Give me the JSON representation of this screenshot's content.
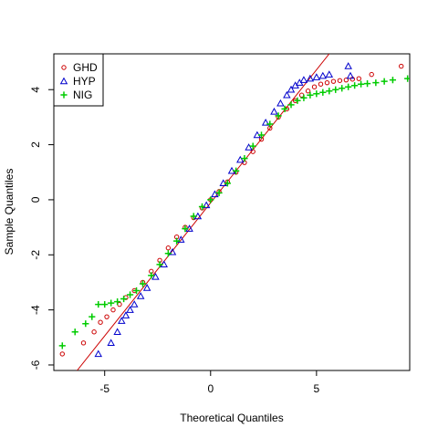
{
  "chart_data": {
    "type": "scatter",
    "title": "",
    "xlabel": "Theoretical Quantiles",
    "ylabel": "Sample Quantiles",
    "xlim": [
      -7.4,
      9.4
    ],
    "ylim": [
      -6.2,
      5.3
    ],
    "xticks": [
      -5,
      0,
      5
    ],
    "yticks": [
      -6,
      -4,
      -2,
      0,
      2,
      4
    ],
    "grid": false,
    "legend": {
      "position": "top-left",
      "entries": [
        "GHD",
        "HYP",
        "NIG"
      ]
    },
    "reference_line": {
      "color": "#cc0000",
      "from": [
        -6.3,
        -6.2
      ],
      "to": [
        5.6,
        5.3
      ]
    },
    "series": [
      {
        "name": "GHD",
        "marker": "circle",
        "color": "#cc0000",
        "points": [
          [
            -7.0,
            -5.6
          ],
          [
            -6.0,
            -5.2
          ],
          [
            -5.5,
            -4.8
          ],
          [
            -5.2,
            -4.45
          ],
          [
            -4.9,
            -4.25
          ],
          [
            -4.6,
            -4.0
          ],
          [
            -4.3,
            -3.8
          ],
          [
            -4.0,
            -3.55
          ],
          [
            -3.6,
            -3.3
          ],
          [
            -3.2,
            -3.0
          ],
          [
            -2.8,
            -2.6
          ],
          [
            -2.4,
            -2.2
          ],
          [
            -2.0,
            -1.75
          ],
          [
            -1.6,
            -1.35
          ],
          [
            -1.2,
            -1.0
          ],
          [
            -0.8,
            -0.65
          ],
          [
            -0.4,
            -0.3
          ],
          [
            0.0,
            0.0
          ],
          [
            0.4,
            0.3
          ],
          [
            0.8,
            0.65
          ],
          [
            1.2,
            1.0
          ],
          [
            1.6,
            1.35
          ],
          [
            2.0,
            1.75
          ],
          [
            2.4,
            2.2
          ],
          [
            2.8,
            2.6
          ],
          [
            3.2,
            3.0
          ],
          [
            3.6,
            3.3
          ],
          [
            4.0,
            3.6
          ],
          [
            4.3,
            3.8
          ],
          [
            4.6,
            3.95
          ],
          [
            4.9,
            4.1
          ],
          [
            5.2,
            4.2
          ],
          [
            5.5,
            4.25
          ],
          [
            5.8,
            4.3
          ],
          [
            6.1,
            4.33
          ],
          [
            6.4,
            4.35
          ],
          [
            6.7,
            4.38
          ],
          [
            7.0,
            4.4
          ],
          [
            7.6,
            4.55
          ],
          [
            9.0,
            4.85
          ]
        ]
      },
      {
        "name": "HYP",
        "marker": "triangle",
        "color": "#0000cc",
        "points": [
          [
            -5.3,
            -5.6
          ],
          [
            -4.7,
            -5.2
          ],
          [
            -4.4,
            -4.8
          ],
          [
            -4.2,
            -4.4
          ],
          [
            -4.0,
            -4.2
          ],
          [
            -3.8,
            -4.0
          ],
          [
            -3.6,
            -3.8
          ],
          [
            -3.3,
            -3.5
          ],
          [
            -3.0,
            -3.2
          ],
          [
            -2.6,
            -2.8
          ],
          [
            -2.2,
            -2.35
          ],
          [
            -1.8,
            -1.9
          ],
          [
            -1.4,
            -1.45
          ],
          [
            -1.0,
            -1.05
          ],
          [
            -0.6,
            -0.6
          ],
          [
            -0.2,
            -0.2
          ],
          [
            0.2,
            0.2
          ],
          [
            0.6,
            0.6
          ],
          [
            1.0,
            1.05
          ],
          [
            1.4,
            1.45
          ],
          [
            1.8,
            1.9
          ],
          [
            2.2,
            2.35
          ],
          [
            2.6,
            2.8
          ],
          [
            3.0,
            3.2
          ],
          [
            3.3,
            3.5
          ],
          [
            3.6,
            3.8
          ],
          [
            3.8,
            4.0
          ],
          [
            4.0,
            4.15
          ],
          [
            4.2,
            4.25
          ],
          [
            4.4,
            4.35
          ],
          [
            4.7,
            4.4
          ],
          [
            5.0,
            4.45
          ],
          [
            5.3,
            4.5
          ],
          [
            5.6,
            4.55
          ],
          [
            6.5,
            4.85
          ],
          [
            6.6,
            4.5
          ]
        ]
      },
      {
        "name": "NIG",
        "marker": "plus",
        "color": "#00cc00",
        "points": [
          [
            -7.0,
            -5.3
          ],
          [
            -6.4,
            -4.8
          ],
          [
            -5.9,
            -4.5
          ],
          [
            -5.6,
            -4.25
          ],
          [
            -5.3,
            -3.8
          ],
          [
            -5.0,
            -3.8
          ],
          [
            -4.7,
            -3.75
          ],
          [
            -4.4,
            -3.7
          ],
          [
            -4.1,
            -3.6
          ],
          [
            -3.8,
            -3.45
          ],
          [
            -3.5,
            -3.3
          ],
          [
            -3.2,
            -3.05
          ],
          [
            -2.8,
            -2.75
          ],
          [
            -2.4,
            -2.35
          ],
          [
            -2.0,
            -1.95
          ],
          [
            -1.6,
            -1.5
          ],
          [
            -1.2,
            -1.05
          ],
          [
            -0.8,
            -0.6
          ],
          [
            -0.4,
            -0.25
          ],
          [
            0.0,
            0.0
          ],
          [
            0.4,
            0.25
          ],
          [
            0.8,
            0.6
          ],
          [
            1.2,
            1.05
          ],
          [
            1.6,
            1.5
          ],
          [
            2.0,
            1.95
          ],
          [
            2.4,
            2.35
          ],
          [
            2.8,
            2.75
          ],
          [
            3.2,
            3.05
          ],
          [
            3.5,
            3.3
          ],
          [
            3.8,
            3.45
          ],
          [
            4.1,
            3.6
          ],
          [
            4.4,
            3.7
          ],
          [
            4.7,
            3.8
          ],
          [
            5.0,
            3.85
          ],
          [
            5.3,
            3.9
          ],
          [
            5.6,
            3.95
          ],
          [
            5.9,
            4.0
          ],
          [
            6.2,
            4.05
          ],
          [
            6.5,
            4.1
          ],
          [
            6.8,
            4.15
          ],
          [
            7.1,
            4.2
          ],
          [
            7.4,
            4.22
          ],
          [
            7.8,
            4.25
          ],
          [
            8.2,
            4.3
          ],
          [
            8.6,
            4.35
          ],
          [
            9.3,
            4.4
          ]
        ]
      }
    ]
  }
}
